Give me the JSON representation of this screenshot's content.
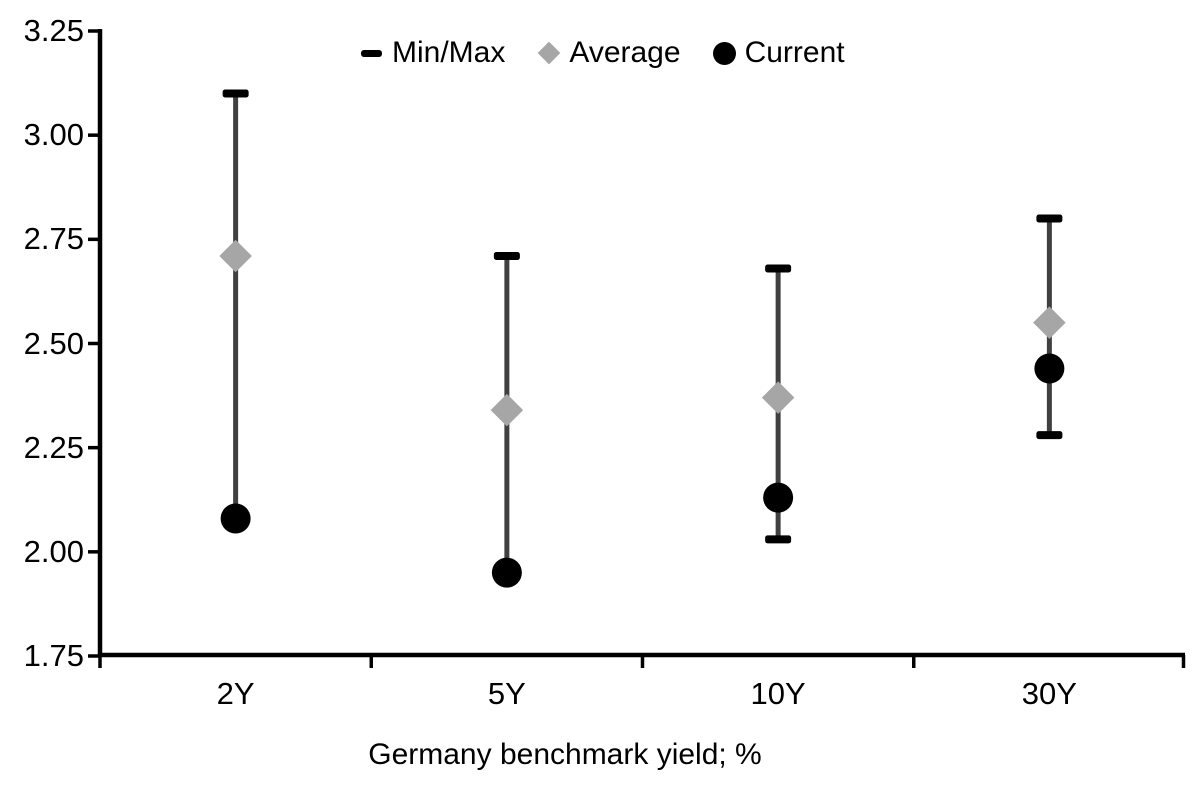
{
  "chart_data": {
    "type": "scatter",
    "subtype": "min-max-range",
    "title": "",
    "xlabel": "Germany benchmark yield; %",
    "ylabel": "",
    "categories": [
      "2Y",
      "5Y",
      "10Y",
      "30Y"
    ],
    "series": [
      {
        "name": "Min/Max",
        "marker": "dash",
        "min": [
          2.08,
          1.95,
          2.03,
          2.28
        ],
        "max": [
          3.1,
          2.71,
          2.68,
          2.8
        ]
      },
      {
        "name": "Average",
        "marker": "diamond",
        "values": [
          2.71,
          2.34,
          2.37,
          2.55
        ]
      },
      {
        "name": "Current",
        "marker": "circle",
        "values": [
          2.08,
          1.95,
          2.13,
          2.44
        ]
      }
    ],
    "ylim": [
      1.75,
      3.25
    ],
    "ytick_step": 0.25,
    "ytick_labels": [
      "3.25",
      "3.00",
      "2.75",
      "2.50",
      "2.25",
      "2.00",
      "1.75"
    ],
    "grid": false,
    "legend_position": "top-center"
  },
  "colors": {
    "background": "#ffffff",
    "axis": "#000000",
    "text": "#000000",
    "range_line": "#404040",
    "minmax_cap": "#000000",
    "average_marker": "#a6a6a6",
    "current_marker": "#000000"
  }
}
